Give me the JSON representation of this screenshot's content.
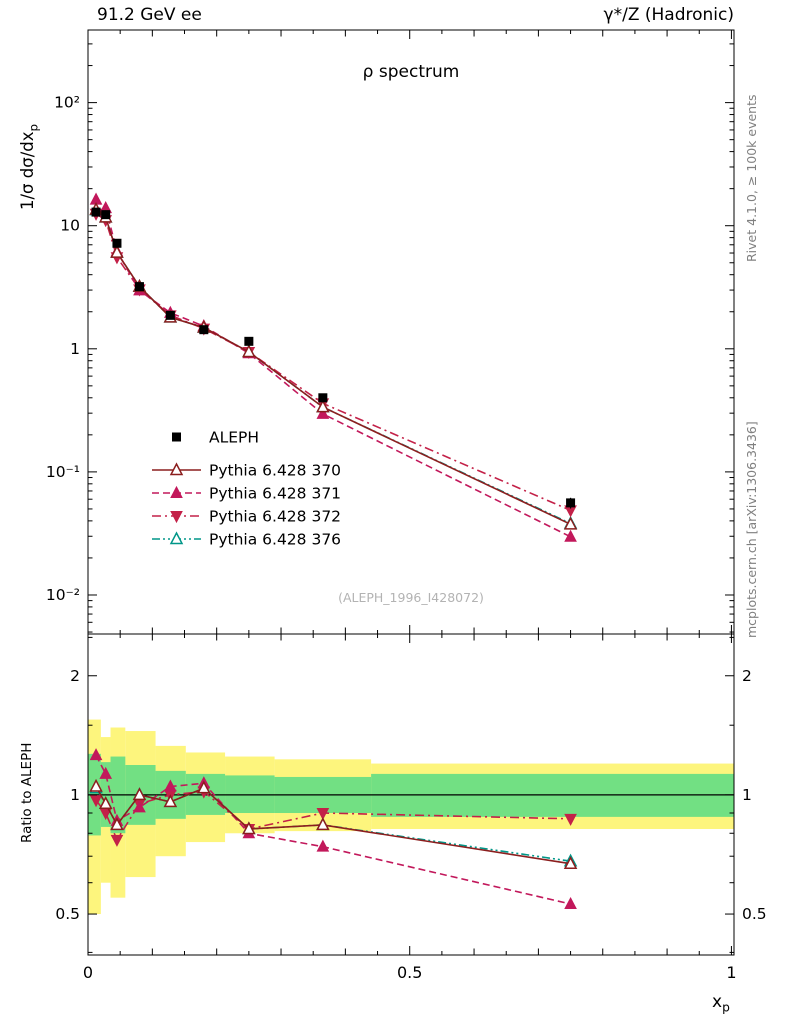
{
  "header": {
    "left": "91.2 GeV ee",
    "right": "γ*/Z (Hadronic)"
  },
  "side_texts": {
    "top_right": "Rivet 4.1.0, ≥ 100k events",
    "bottom_right": "mcplots.cern.ch [arXiv:1306.3436]"
  },
  "watermark": "(ALEPH_1996_I428072)",
  "chart_data": {
    "type": "line",
    "title": "ρ spectrum",
    "xlabel": {
      "text": "x",
      "sub": "p"
    },
    "ylabel_main": {
      "text": "1/σ  dσ/dx",
      "sub": "p"
    },
    "ylabel_ratio": "Ratio to ALEPH",
    "x_range": [
      0,
      1.004
    ],
    "y_range_main": [
      0.00482,
      389
    ],
    "y_range_ratio": [
      0.394,
      2.55
    ],
    "grid": false,
    "legend_position": "middle-left",
    "x": [
      0.0125,
      0.0275,
      0.045,
      0.08,
      0.128,
      0.18,
      0.25,
      0.365,
      0.75
    ],
    "series": [
      {
        "name": "ALEPH",
        "color": "#000000",
        "marker": "square",
        "line": "none",
        "values": [
          12.9,
          12.3,
          7.2,
          3.2,
          1.87,
          1.43,
          1.15,
          0.4,
          0.056
        ],
        "ratio": [
          1,
          1,
          1,
          1,
          1,
          1,
          1,
          1,
          1
        ],
        "yerr_frac": [
          0.03,
          0.03,
          0.02,
          0.02,
          0.02,
          0.03,
          0.03,
          0.05,
          0.1
        ]
      },
      {
        "name": "Pythia 6.428 370",
        "color": "#8b1e1e",
        "marker": "triangle-open",
        "line": "solid",
        "values": [
          13.5,
          11.7,
          6.05,
          3.2,
          1.8,
          1.49,
          0.943,
          0.336,
          0.0375
        ],
        "ratio": [
          1.05,
          0.95,
          0.84,
          1.0,
          0.96,
          1.04,
          0.82,
          0.84,
          0.67
        ]
      },
      {
        "name": "Pythia 6.428 371",
        "color": "#c2185b",
        "marker": "triangle",
        "line": "dash",
        "values": [
          16.3,
          13.9,
          6.19,
          2.98,
          1.96,
          1.53,
          0.92,
          0.296,
          0.0297
        ],
        "ratio": [
          1.26,
          1.13,
          0.86,
          0.93,
          1.05,
          1.07,
          0.8,
          0.74,
          0.53
        ]
      },
      {
        "name": "Pythia 6.428 372",
        "color": "#c32148",
        "marker": "triangle-down",
        "line": "dashdot",
        "values": [
          12.5,
          11.1,
          5.54,
          3.04,
          1.87,
          1.46,
          0.943,
          0.36,
          0.0487
        ],
        "ratio": [
          0.97,
          0.9,
          0.77,
          0.95,
          1.0,
          1.02,
          0.82,
          0.9,
          0.87
        ]
      },
      {
        "name": "Pythia 6.428 376",
        "color": "#009688",
        "marker": "triangle-open",
        "line": "dashdotdot",
        "values": [
          13.4,
          11.7,
          6.05,
          3.2,
          1.8,
          1.49,
          0.943,
          0.336,
          0.0381
        ],
        "ratio": [
          1.04,
          0.95,
          0.84,
          1.0,
          0.96,
          1.04,
          0.82,
          0.84,
          0.68
        ]
      }
    ],
    "bands": [
      {
        "x0": 0.0,
        "x1": 0.02,
        "y_lo": 0.5,
        "y_hi": 1.55,
        "g_lo": 0.79,
        "g_hi": 1.27
      },
      {
        "x0": 0.02,
        "x1": 0.035,
        "y_lo": 0.6,
        "y_hi": 1.4,
        "g_lo": 0.83,
        "g_hi": 1.21
      },
      {
        "x0": 0.035,
        "x1": 0.058,
        "y_lo": 0.55,
        "y_hi": 1.48,
        "g_lo": 0.8,
        "g_hi": 1.25
      },
      {
        "x0": 0.058,
        "x1": 0.105,
        "y_lo": 0.62,
        "y_hi": 1.45,
        "g_lo": 0.84,
        "g_hi": 1.19
      },
      {
        "x0": 0.105,
        "x1": 0.152,
        "y_lo": 0.7,
        "y_hi": 1.33,
        "g_lo": 0.87,
        "g_hi": 1.15
      },
      {
        "x0": 0.152,
        "x1": 0.213,
        "y_lo": 0.76,
        "y_hi": 1.28,
        "g_lo": 0.89,
        "g_hi": 1.13
      },
      {
        "x0": 0.213,
        "x1": 0.29,
        "y_lo": 0.8,
        "y_hi": 1.25,
        "g_lo": 0.9,
        "g_hi": 1.12
      },
      {
        "x0": 0.29,
        "x1": 0.44,
        "y_lo": 0.81,
        "y_hi": 1.23,
        "g_lo": 0.9,
        "g_hi": 1.11
      },
      {
        "x0": 0.44,
        "x1": 1.004,
        "y_lo": 0.82,
        "y_hi": 1.2,
        "g_lo": 0.88,
        "g_hi": 1.13
      }
    ],
    "xticks": {
      "major": [
        {
          "v": 0,
          "label": "0"
        },
        {
          "v": 0.5,
          "label": "0.5"
        },
        {
          "v": 1,
          "label": "1"
        }
      ]
    },
    "yticks_main": {
      "major": [
        {
          "v": 100,
          "label": "10²"
        },
        {
          "v": 10,
          "label": "10"
        },
        {
          "v": 1,
          "label": "1"
        },
        {
          "v": 0.1,
          "label": "10⁻¹"
        },
        {
          "v": 0.01,
          "label": "10⁻²"
        }
      ]
    },
    "yticks_ratio": {
      "major": [
        {
          "v": 2,
          "label": "2"
        },
        {
          "v": 1,
          "label": "1"
        },
        {
          "v": 0.5,
          "label": "0.5"
        }
      ],
      "minor": [
        0.4,
        0.6,
        0.7,
        0.8,
        0.9,
        1.5,
        2.5
      ]
    },
    "colors": {
      "band_yellow": "#fdf57d",
      "band_green": "#72e083",
      "reference_line": "#000000"
    }
  }
}
